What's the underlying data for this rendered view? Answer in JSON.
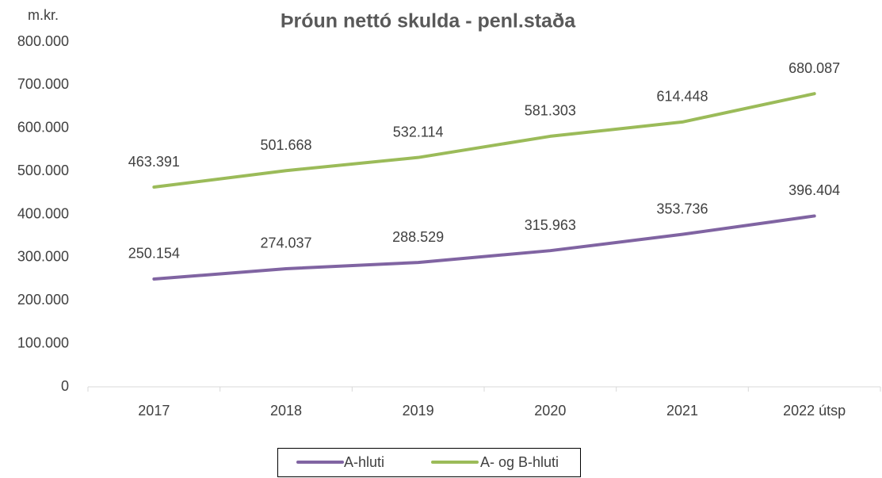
{
  "chart_data": {
    "type": "line",
    "title": "Þróun nettó skulda - penl.staða",
    "ylabel": "m.kr.",
    "categories": [
      "2017",
      "2018",
      "2019",
      "2020",
      "2021",
      "2022 útsp"
    ],
    "series": [
      {
        "name": "A-hluti",
        "color": "#8064a2",
        "values": [
          250154,
          274037,
          288529,
          315963,
          353736,
          396404
        ],
        "value_labels": [
          "250.154",
          "274.037",
          "288.529",
          "315.963",
          "353.736",
          "396.404"
        ]
      },
      {
        "name": "A- og B-hluti",
        "color": "#9bbb59",
        "values": [
          463391,
          501668,
          532114,
          581303,
          614448,
          680087
        ],
        "value_labels": [
          "463.391",
          "501.668",
          "532.114",
          "581.303",
          "614.448",
          "680.087"
        ]
      }
    ],
    "ylim": [
      0,
      800000
    ],
    "yticks": [
      0,
      {
        "value": 100000,
        "label": "100.000"
      },
      {
        "value": 200000,
        "label": "200.000"
      },
      {
        "value": 300000,
        "label": "300.000"
      },
      {
        "value": 400000,
        "label": "400.000"
      },
      {
        "value": 500000,
        "label": "500.000"
      },
      {
        "value": 600000,
        "label": "600.000"
      },
      {
        "value": 700000,
        "label": "700.000"
      },
      {
        "value": 800000,
        "label": "800.000"
      }
    ],
    "grid": false,
    "legend": "bottom"
  }
}
